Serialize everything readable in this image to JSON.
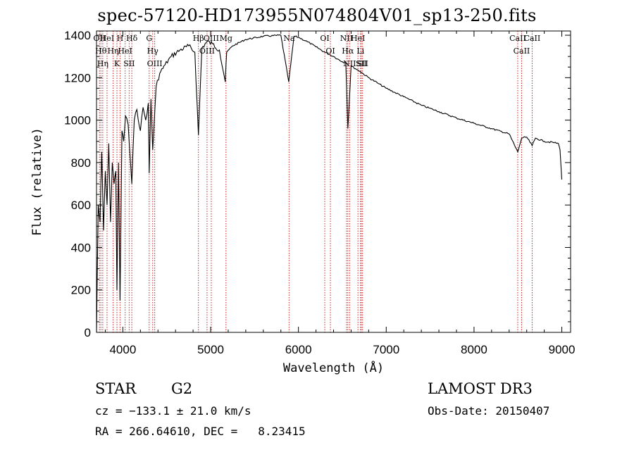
{
  "chart_data": {
    "type": "line",
    "title": "spec-57120-HD173955N074804V01_sp13-250.fits",
    "xlabel": "Wavelength (Å)",
    "ylabel": "Flux (relative)",
    "xlim": [
      3700,
      9100
    ],
    "ylim": [
      0,
      1420
    ],
    "x_ticks": [
      4000,
      5000,
      6000,
      7000,
      8000,
      9000
    ],
    "y_ticks": [
      0,
      200,
      400,
      600,
      800,
      1000,
      1200,
      1400
    ],
    "grid": false,
    "legend": "none",
    "line_color": "#000000",
    "marker_color": "#cc2222",
    "series": [
      {
        "x": [
          3700,
          3720,
          3740,
          3760,
          3780,
          3800,
          3820,
          3840,
          3860,
          3880,
          3900,
          3920,
          3933,
          3950,
          3968,
          3990,
          4010,
          4030,
          4060,
          4102,
          4130,
          4160,
          4200,
          4230,
          4260,
          4290,
          4300,
          4320,
          4340,
          4380,
          4420,
          4480,
          4550,
          4650,
          4750,
          4820,
          4861,
          4900,
          4960,
          5020,
          5100,
          5167,
          5183,
          5250,
          5400,
          5600,
          5800,
          5890,
          5950,
          6000,
          6100,
          6200,
          6300,
          6400,
          6500,
          6540,
          6563,
          6600,
          6700,
          6800,
          6900,
          7000,
          7200,
          7400,
          7600,
          7800,
          8000,
          8200,
          8400,
          8498,
          8542,
          8600,
          8662,
          8700,
          8800,
          8900,
          8960,
          8980,
          9000
        ],
        "y": [
          0,
          600,
          520,
          850,
          480,
          760,
          600,
          890,
          520,
          800,
          700,
          760,
          200,
          800,
          150,
          950,
          900,
          1020,
          980,
          700,
          1000,
          1050,
          950,
          1060,
          1000,
          1080,
          750,
          1100,
          860,
          1160,
          1220,
          1260,
          1300,
          1330,
          1350,
          1320,
          930,
          1340,
          1370,
          1360,
          1330,
          1180,
          1320,
          1350,
          1380,
          1395,
          1400,
          1180,
          1395,
          1390,
          1370,
          1345,
          1320,
          1300,
          1275,
          1270,
          960,
          1255,
          1230,
          1200,
          1175,
          1150,
          1110,
          1070,
          1040,
          1010,
          985,
          960,
          935,
          850,
          915,
          920,
          880,
          915,
          900,
          895,
          890,
          860,
          720
        ]
      }
    ],
    "line_markers": [
      {
        "x": 3734,
        "label": "OII"
      },
      {
        "x": 3750,
        "label": "Hθ"
      },
      {
        "x": 3771,
        "label": "Hη"
      },
      {
        "x": 3820,
        "label": "HeI"
      },
      {
        "x": 3889,
        "label": "Hη"
      },
      {
        "x": 3933,
        "label": "K"
      },
      {
        "x": 3968,
        "label": "H"
      },
      {
        "x": 4026,
        "label": "HeI"
      },
      {
        "x": 4072,
        "label": "SII"
      },
      {
        "x": 4102,
        "label": "Hδ"
      },
      {
        "x": 4300,
        "label": "G"
      },
      {
        "x": 4340,
        "label": "Hγ"
      },
      {
        "x": 4363,
        "label": "OIII"
      },
      {
        "x": 4861,
        "label": "Hβ"
      },
      {
        "x": 4959,
        "label": "OIII"
      },
      {
        "x": 5007,
        "label": "OIII"
      },
      {
        "x": 5175,
        "label": "Mg"
      },
      {
        "x": 5893,
        "label": "Na"
      },
      {
        "x": 6300,
        "label": "OI"
      },
      {
        "x": 6364,
        "label": "OI"
      },
      {
        "x": 6548,
        "label": "NII"
      },
      {
        "x": 6563,
        "label": "Hα"
      },
      {
        "x": 6583,
        "label": "NII"
      },
      {
        "x": 6678,
        "label": "HeI"
      },
      {
        "x": 6707,
        "label": "Li"
      },
      {
        "x": 6717,
        "label": "SII"
      },
      {
        "x": 6731,
        "label": "SII"
      },
      {
        "x": 8498,
        "label": "CaII"
      },
      {
        "x": 8542,
        "label": "CaII"
      },
      {
        "x": 8662,
        "label": "CaII"
      }
    ]
  },
  "info": {
    "object_class": "STAR",
    "subclass": "G2",
    "survey": "LAMOST DR3",
    "cz": "cz = −133.1 ± 21.0 km/s",
    "obs_date": "Obs-Date: 20150407",
    "coords": "RA = 266.64610, DEC =   8.23415"
  }
}
